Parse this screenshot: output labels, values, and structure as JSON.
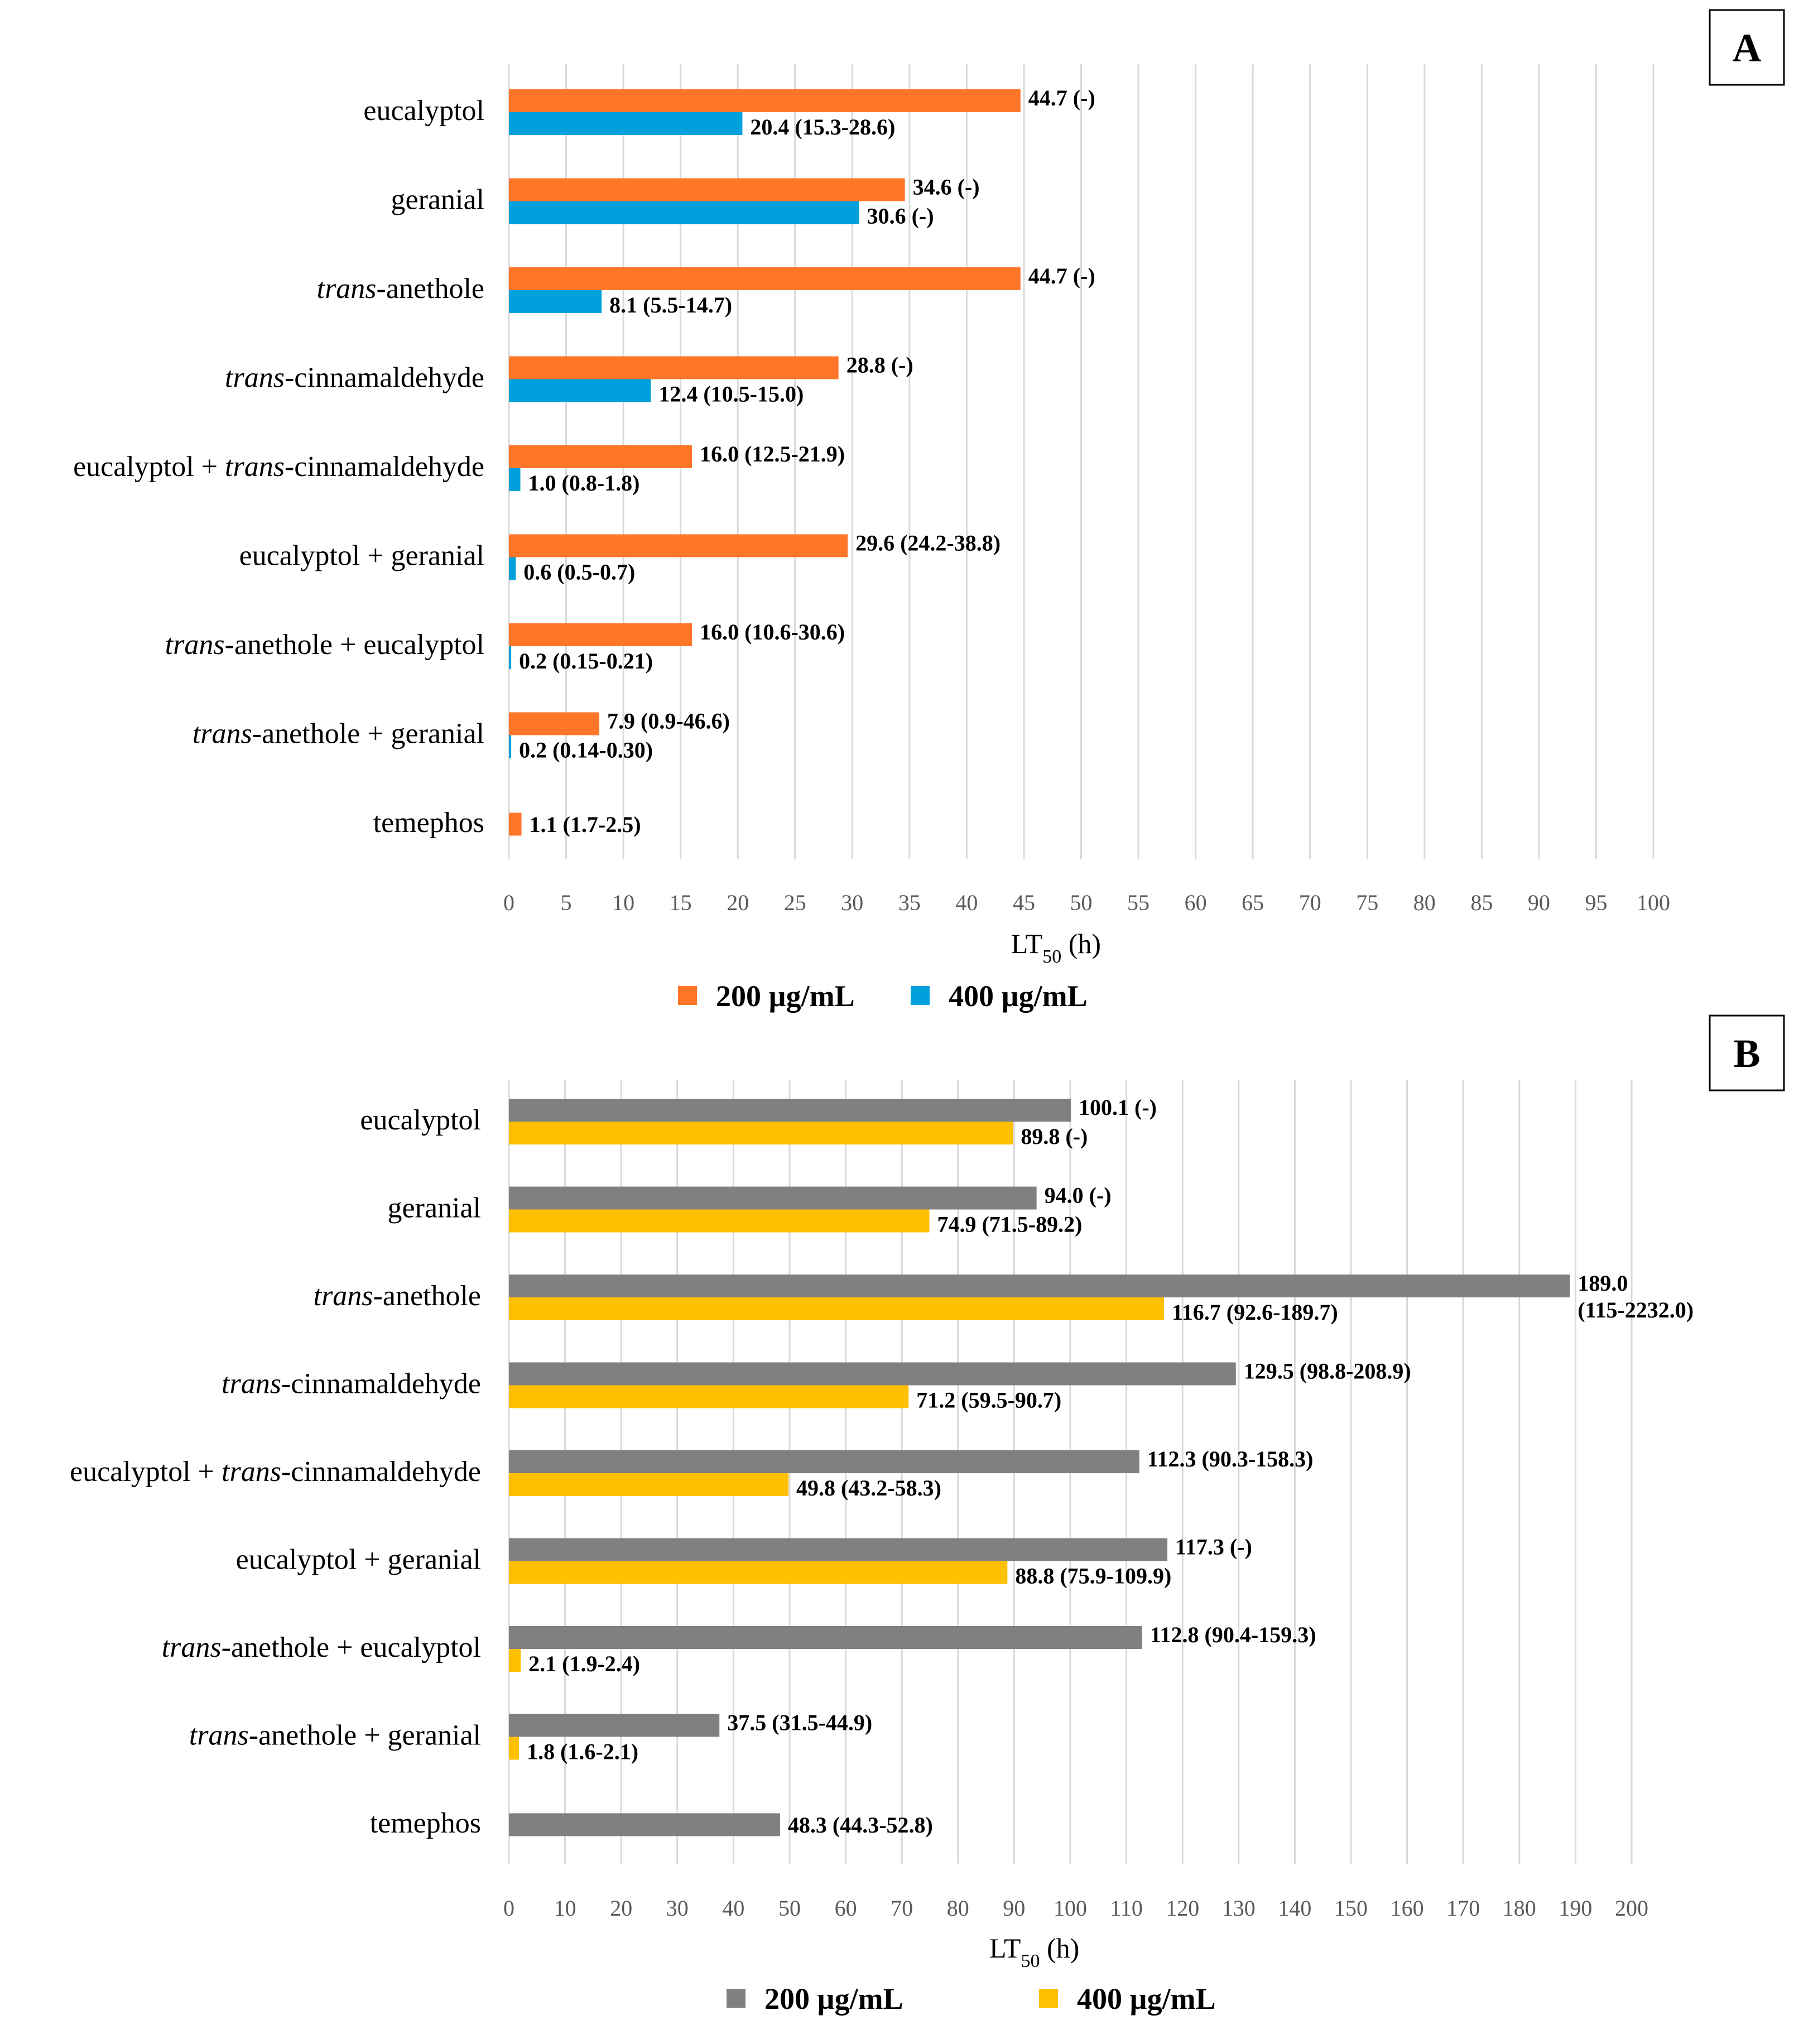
{
  "chart_data": [
    {
      "panel_label": "A",
      "type": "bar",
      "orientation": "horizontal",
      "categories": [
        {
          "pre": "",
          "it": "",
          "post": "eucalyptol"
        },
        {
          "pre": "",
          "it": "",
          "post": "geranial"
        },
        {
          "pre": "",
          "it": "trans",
          "post": "-anethole"
        },
        {
          "pre": "",
          "it": "trans",
          "post": "-cinnamaldehyde"
        },
        {
          "pre": "eucalyptol + ",
          "it": "trans",
          "post": "-cinnamaldehyde"
        },
        {
          "pre": "",
          "it": "",
          "post": "eucalyptol + geranial"
        },
        {
          "pre": "",
          "it": "trans",
          "post": "-anethole + eucalyptol"
        },
        {
          "pre": "",
          "it": "trans",
          "post": "-anethole + geranial"
        },
        {
          "pre": "",
          "it": "",
          "post": "temephos"
        }
      ],
      "series": [
        {
          "name": "200 µg/mL",
          "color": "#FF7629",
          "values": [
            44.7,
            34.6,
            44.7,
            28.8,
            16.0,
            29.6,
            16.0,
            7.9,
            1.1
          ],
          "labels": [
            "44.7 (-)",
            "34.6 (-)",
            "44.7 (-)",
            "28.8 (-)",
            "16.0 (12.5-21.9)",
            "29.6 (24.2-38.8)",
            "16.0 (10.6-30.6)",
            "7.9 (0.9-46.6)",
            "1.1 (1.7-2.5)"
          ]
        },
        {
          "name": "400 µg/mL",
          "color": "#00A0DC",
          "values": [
            20.4,
            30.6,
            8.1,
            12.4,
            1.0,
            0.6,
            0.2,
            0.2,
            null
          ],
          "labels": [
            "20.4 (15.3-28.6)",
            "30.6 (-)",
            "8.1 (5.5-14.7)",
            "12.4 (10.5-15.0)",
            "1.0 (0.8-1.8)",
            "0.6 (0.5-0.7)",
            "0.2 (0.15-0.21)",
            "0.2 (0.14-0.30)",
            null
          ]
        }
      ],
      "xlim": [
        0,
        100
      ],
      "xticks": [
        0,
        5,
        10,
        15,
        20,
        25,
        30,
        35,
        40,
        45,
        50,
        55,
        60,
        65,
        70,
        75,
        80,
        85,
        90,
        95,
        100
      ],
      "xlabel": "LT",
      "xlabel_sub": "50",
      "xlabel_unit": " (h)",
      "grid": "vertical",
      "legend": "bottom"
    },
    {
      "panel_label": "B",
      "type": "bar",
      "orientation": "horizontal",
      "categories": [
        {
          "pre": "",
          "it": "",
          "post": "eucalyptol"
        },
        {
          "pre": "",
          "it": "",
          "post": "geranial"
        },
        {
          "pre": "",
          "it": "trans",
          "post": "-anethole"
        },
        {
          "pre": "",
          "it": "trans",
          "post": "-cinnamaldehyde"
        },
        {
          "pre": "eucalyptol + ",
          "it": "trans",
          "post": "-cinnamaldehyde"
        },
        {
          "pre": "",
          "it": "",
          "post": "eucalyptol + geranial"
        },
        {
          "pre": "",
          "it": "trans",
          "post": "-anethole + eucalyptol"
        },
        {
          "pre": "",
          "it": "trans",
          "post": "-anethole + geranial"
        },
        {
          "pre": "",
          "it": "",
          "post": "temephos"
        }
      ],
      "series": [
        {
          "name": "200 µg/mL",
          "color": "#808080",
          "values": [
            100.1,
            94.0,
            189.0,
            129.5,
            112.3,
            117.3,
            112.8,
            37.5,
            48.3
          ],
          "labels": [
            "100.1 (-)",
            "94.0 (-)",
            "189.0\n(115-2232.0)",
            "129.5 (98.8-208.9)",
            "112.3 (90.3-158.3)",
            "117.3 (-)",
            "112.8 (90.4-159.3)",
            "37.5 (31.5-44.9)",
            "48.3 (44.3-52.8)"
          ]
        },
        {
          "name": "400 µg/mL",
          "color": "#FFC000",
          "values": [
            89.8,
            74.9,
            116.7,
            71.2,
            49.8,
            88.8,
            2.1,
            1.8,
            null
          ],
          "labels": [
            "89.8 (-)",
            "74.9 (71.5-89.2)",
            "116.7 (92.6-189.7)",
            "71.2 (59.5-90.7)",
            "49.8 (43.2-58.3)",
            "88.8 (75.9-109.9)",
            "2.1 (1.9-2.4)",
            "1.8 (1.6-2.1)",
            null
          ]
        }
      ],
      "xlim": [
        0,
        200
      ],
      "xticks": [
        0,
        10,
        20,
        30,
        40,
        50,
        60,
        70,
        80,
        90,
        100,
        110,
        120,
        130,
        140,
        150,
        160,
        170,
        180,
        190,
        200
      ],
      "xlabel": "LT",
      "xlabel_sub": "50",
      "xlabel_unit": " (h)",
      "grid": "vertical",
      "legend": "bottom"
    }
  ]
}
